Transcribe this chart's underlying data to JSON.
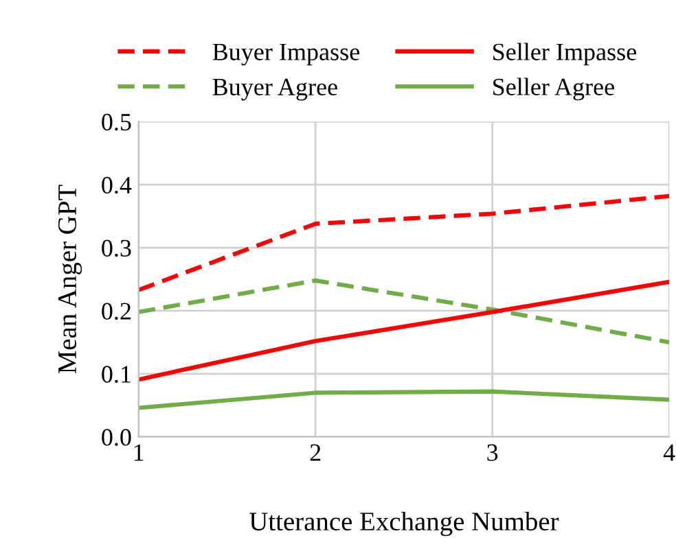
{
  "chart_data": {
    "type": "line",
    "xlabel": "Utterance Exchange Number",
    "ylabel": "Mean Anger GPT",
    "x": [
      1,
      2,
      3,
      4
    ],
    "series": [
      {
        "name": "Buyer Impasse",
        "color": "#ff0000",
        "line_style": "dashed",
        "values": [
          0.233,
          0.338,
          0.354,
          0.382
        ]
      },
      {
        "name": "Buyer Agree",
        "color": "#70ad47",
        "line_style": "dashed",
        "values": [
          0.198,
          0.248,
          0.202,
          0.15
        ]
      },
      {
        "name": "Seller Impasse",
        "color": "#ff0000",
        "line_style": "solid",
        "values": [
          0.091,
          0.152,
          0.198,
          0.246
        ]
      },
      {
        "name": "Seller Agree",
        "color": "#70ad47",
        "line_style": "solid",
        "values": [
          0.046,
          0.07,
          0.072,
          0.059
        ]
      }
    ],
    "xlim": [
      1,
      4
    ],
    "xticks": [
      1,
      2,
      3,
      4
    ],
    "ylim": [
      0,
      0.5
    ],
    "yticks": [
      {
        "value": 0,
        "label": "0.0"
      },
      0.1,
      0.2,
      0.3,
      0.4,
      0.5
    ],
    "grid": true,
    "legend": "top",
    "marker": "none"
  }
}
